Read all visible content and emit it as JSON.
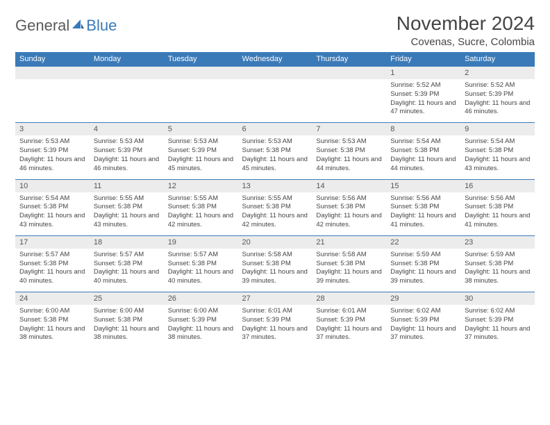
{
  "brand": {
    "part1": "General",
    "part2": "Blue"
  },
  "title": "November 2024",
  "location": "Covenas, Sucre, Colombia",
  "colors": {
    "header_bg": "#3a7ab8",
    "header_text": "#ffffff",
    "daynum_bg": "#ececec",
    "border": "#3a7ab8",
    "body_text": "#444444",
    "logo_gray": "#5a5a5a",
    "logo_blue": "#3a7ab8"
  },
  "weekdays": [
    "Sunday",
    "Monday",
    "Tuesday",
    "Wednesday",
    "Thursday",
    "Friday",
    "Saturday"
  ],
  "weeks": [
    [
      null,
      null,
      null,
      null,
      null,
      {
        "n": "1",
        "sr": "5:52 AM",
        "ss": "5:39 PM",
        "dl": "11 hours and 47 minutes."
      },
      {
        "n": "2",
        "sr": "5:52 AM",
        "ss": "5:39 PM",
        "dl": "11 hours and 46 minutes."
      }
    ],
    [
      {
        "n": "3",
        "sr": "5:53 AM",
        "ss": "5:39 PM",
        "dl": "11 hours and 46 minutes."
      },
      {
        "n": "4",
        "sr": "5:53 AM",
        "ss": "5:39 PM",
        "dl": "11 hours and 46 minutes."
      },
      {
        "n": "5",
        "sr": "5:53 AM",
        "ss": "5:39 PM",
        "dl": "11 hours and 45 minutes."
      },
      {
        "n": "6",
        "sr": "5:53 AM",
        "ss": "5:38 PM",
        "dl": "11 hours and 45 minutes."
      },
      {
        "n": "7",
        "sr": "5:53 AM",
        "ss": "5:38 PM",
        "dl": "11 hours and 44 minutes."
      },
      {
        "n": "8",
        "sr": "5:54 AM",
        "ss": "5:38 PM",
        "dl": "11 hours and 44 minutes."
      },
      {
        "n": "9",
        "sr": "5:54 AM",
        "ss": "5:38 PM",
        "dl": "11 hours and 43 minutes."
      }
    ],
    [
      {
        "n": "10",
        "sr": "5:54 AM",
        "ss": "5:38 PM",
        "dl": "11 hours and 43 minutes."
      },
      {
        "n": "11",
        "sr": "5:55 AM",
        "ss": "5:38 PM",
        "dl": "11 hours and 43 minutes."
      },
      {
        "n": "12",
        "sr": "5:55 AM",
        "ss": "5:38 PM",
        "dl": "11 hours and 42 minutes."
      },
      {
        "n": "13",
        "sr": "5:55 AM",
        "ss": "5:38 PM",
        "dl": "11 hours and 42 minutes."
      },
      {
        "n": "14",
        "sr": "5:56 AM",
        "ss": "5:38 PM",
        "dl": "11 hours and 42 minutes."
      },
      {
        "n": "15",
        "sr": "5:56 AM",
        "ss": "5:38 PM",
        "dl": "11 hours and 41 minutes."
      },
      {
        "n": "16",
        "sr": "5:56 AM",
        "ss": "5:38 PM",
        "dl": "11 hours and 41 minutes."
      }
    ],
    [
      {
        "n": "17",
        "sr": "5:57 AM",
        "ss": "5:38 PM",
        "dl": "11 hours and 40 minutes."
      },
      {
        "n": "18",
        "sr": "5:57 AM",
        "ss": "5:38 PM",
        "dl": "11 hours and 40 minutes."
      },
      {
        "n": "19",
        "sr": "5:57 AM",
        "ss": "5:38 PM",
        "dl": "11 hours and 40 minutes."
      },
      {
        "n": "20",
        "sr": "5:58 AM",
        "ss": "5:38 PM",
        "dl": "11 hours and 39 minutes."
      },
      {
        "n": "21",
        "sr": "5:58 AM",
        "ss": "5:38 PM",
        "dl": "11 hours and 39 minutes."
      },
      {
        "n": "22",
        "sr": "5:59 AM",
        "ss": "5:38 PM",
        "dl": "11 hours and 39 minutes."
      },
      {
        "n": "23",
        "sr": "5:59 AM",
        "ss": "5:38 PM",
        "dl": "11 hours and 38 minutes."
      }
    ],
    [
      {
        "n": "24",
        "sr": "6:00 AM",
        "ss": "5:38 PM",
        "dl": "11 hours and 38 minutes."
      },
      {
        "n": "25",
        "sr": "6:00 AM",
        "ss": "5:38 PM",
        "dl": "11 hours and 38 minutes."
      },
      {
        "n": "26",
        "sr": "6:00 AM",
        "ss": "5:39 PM",
        "dl": "11 hours and 38 minutes."
      },
      {
        "n": "27",
        "sr": "6:01 AM",
        "ss": "5:39 PM",
        "dl": "11 hours and 37 minutes."
      },
      {
        "n": "28",
        "sr": "6:01 AM",
        "ss": "5:39 PM",
        "dl": "11 hours and 37 minutes."
      },
      {
        "n": "29",
        "sr": "6:02 AM",
        "ss": "5:39 PM",
        "dl": "11 hours and 37 minutes."
      },
      {
        "n": "30",
        "sr": "6:02 AM",
        "ss": "5:39 PM",
        "dl": "11 hours and 37 minutes."
      }
    ]
  ],
  "labels": {
    "sunrise": "Sunrise: ",
    "sunset": "Sunset: ",
    "daylight": "Daylight: "
  }
}
